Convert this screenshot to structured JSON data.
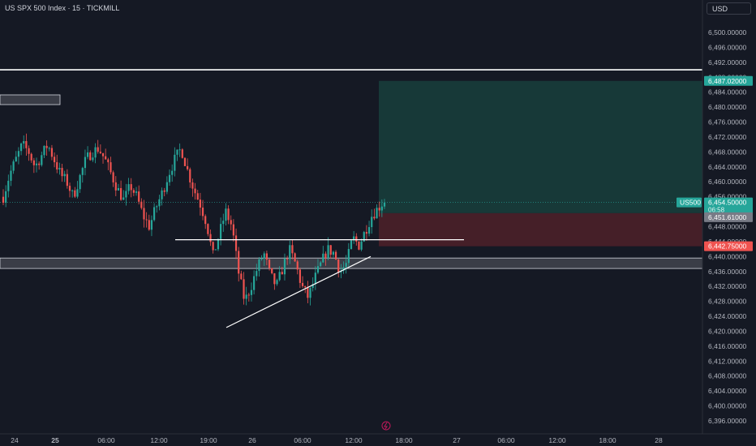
{
  "header": {
    "symbol_title": "US SPX 500 Index · 15 · TICKMILL",
    "currency_button": "USD"
  },
  "colors": {
    "background": "#151924",
    "bull": "#26a69a",
    "bear": "#ef5350",
    "profit_zone": "#18403c",
    "loss_zone": "#4a2029",
    "line": "#ffffff",
    "zone_fill": "#3a3d47"
  },
  "position_labels": {
    "target": "6,487.02000",
    "entry": "6,451.61000",
    "stop": "6,442.75000",
    "symbol_tag": "US500",
    "last_price": "6,454.50000",
    "countdown": "06:58"
  },
  "chart_data": {
    "type": "candlestick",
    "title": "US SPX 500 Index · 15 · TICKMILL",
    "y_axis": {
      "range": [
        6394,
        6503
      ],
      "ticks": [
        "6,396.00000",
        "6,400.00000",
        "6,404.00000",
        "6,408.00000",
        "6,412.00000",
        "6,416.00000",
        "6,420.00000",
        "6,424.00000",
        "6,428.00000",
        "6,432.00000",
        "6,436.00000",
        "6,440.00000",
        "6,444.00000",
        "6,448.00000",
        "6,452.00000",
        "6,456.00000",
        "6,460.00000",
        "6,464.00000",
        "6,468.00000",
        "6,472.00000",
        "6,476.00000",
        "6,480.00000",
        "6,484.00000",
        "6,488.00000",
        "6,492.00000",
        "6,496.00000",
        "6,500.00000"
      ]
    },
    "x_axis": {
      "ticks": [
        {
          "label": "24",
          "bold": false
        },
        {
          "label": "25",
          "bold": true
        },
        {
          "label": "06:00",
          "bold": false
        },
        {
          "label": "12:00",
          "bold": false
        },
        {
          "label": "19:00",
          "bold": false
        },
        {
          "label": "26",
          "bold": false
        },
        {
          "label": "06:00",
          "bold": false
        },
        {
          "label": "12:00",
          "bold": false
        },
        {
          "label": "18:00",
          "bold": false
        },
        {
          "label": "27",
          "bold": false
        },
        {
          "label": "06:00",
          "bold": false
        },
        {
          "label": "12:00",
          "bold": false
        },
        {
          "label": "18:00",
          "bold": false
        },
        {
          "label": "28",
          "bold": false
        }
      ]
    },
    "close_path": [
      6456,
      6462,
      6466,
      6470,
      6468,
      6464,
      6467,
      6470,
      6466,
      6462,
      6460,
      6456,
      6461,
      6466,
      6468,
      6469,
      6466,
      6462,
      6458,
      6455,
      6459,
      6456,
      6451,
      6448,
      6453,
      6457,
      6462,
      6466,
      6469,
      6463,
      6458,
      6454,
      6449,
      6440,
      6446,
      6452,
      6448,
      6436,
      6428,
      6432,
      6437,
      6441,
      6435,
      6432,
      6437,
      6442,
      6438,
      6432,
      6429,
      6434,
      6438,
      6442,
      6441,
      6436,
      6438,
      6445,
      6443,
      6447,
      6451,
      6453,
      6455
    ],
    "levels": {
      "resistance_line": 6490,
      "support_zone": [
        6436.8,
        6439.6
      ],
      "neckline": 6444.5,
      "target": 6487.02,
      "entry": 6451.61,
      "stop": 6442.75,
      "last_price": 6454.5
    },
    "trendline": {
      "from": 6421,
      "to": 6440
    },
    "grid": false
  }
}
